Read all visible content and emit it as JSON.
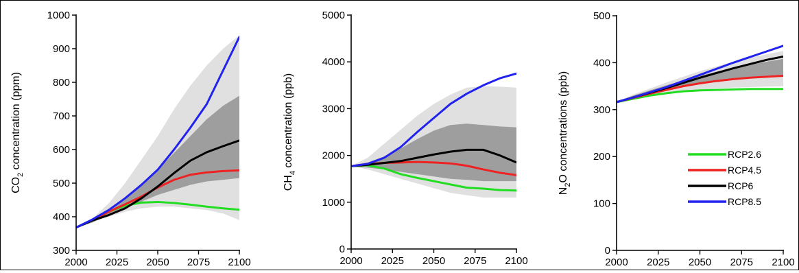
{
  "chart_data": [
    {
      "type": "line",
      "id": "co2",
      "ylabel_main": "CO",
      "ylabel_sub": "2",
      "ylabel_rest": " concentration (ppm)",
      "xlim": [
        2000,
        2100
      ],
      "ylim": [
        300,
        1000
      ],
      "xticks": [
        "2000",
        "2025",
        "2050",
        "2075",
        "2100"
      ],
      "yticks": [
        "300",
        "400",
        "500",
        "600",
        "700",
        "800",
        "900",
        "1000"
      ],
      "x": [
        2000,
        2010,
        2020,
        2030,
        2040,
        2050,
        2060,
        2070,
        2080,
        2090,
        2100
      ],
      "bands": [
        {
          "kind": "light",
          "lower": [
            367,
            385,
            400,
            415,
            425,
            430,
            430,
            425,
            420,
            410,
            390
          ],
          "upper": [
            367,
            395,
            440,
            500,
            570,
            640,
            720,
            790,
            850,
            900,
            940
          ]
        },
        {
          "kind": "dark",
          "lower": [
            367,
            383,
            405,
            425,
            445,
            465,
            480,
            495,
            505,
            510,
            515
          ],
          "upper": [
            367,
            390,
            420,
            455,
            495,
            540,
            590,
            640,
            690,
            730,
            760
          ]
        }
      ],
      "series": [
        {
          "name": "RCP2.6",
          "color": "#22dd22",
          "values": [
            368,
            390,
            415,
            433,
            442,
            444,
            441,
            436,
            430,
            425,
            421
          ]
        },
        {
          "name": "RCP4.5",
          "color": "#ee2222",
          "values": [
            368,
            390,
            415,
            437,
            460,
            487,
            510,
            525,
            532,
            536,
            538
          ]
        },
        {
          "name": "RCP6",
          "color": "#000000",
          "values": [
            368,
            389,
            405,
            425,
            455,
            490,
            530,
            567,
            592,
            610,
            627
          ]
        },
        {
          "name": "RCP8.5",
          "color": "#2222ee",
          "values": [
            368,
            392,
            420,
            455,
            495,
            540,
            600,
            665,
            735,
            835,
            935
          ]
        }
      ]
    },
    {
      "type": "line",
      "id": "ch4",
      "ylabel_main": "CH",
      "ylabel_sub": "4",
      "ylabel_rest": " concentration (ppb)",
      "xlim": [
        2000,
        2100
      ],
      "ylim": [
        0,
        5000
      ],
      "xticks": [
        "2000",
        "2025",
        "2050",
        "2075",
        "2100"
      ],
      "yticks": [
        "0",
        "1000",
        "2000",
        "3000",
        "4000",
        "5000"
      ],
      "x": [
        2000,
        2010,
        2020,
        2030,
        2040,
        2050,
        2060,
        2070,
        2080,
        2090,
        2100
      ],
      "bands": [
        {
          "kind": "light",
          "lower": [
            1770,
            1700,
            1600,
            1500,
            1400,
            1300,
            1200,
            1150,
            1100,
            1100,
            1100
          ],
          "upper": [
            1770,
            1950,
            2250,
            2550,
            2850,
            3100,
            3300,
            3450,
            3480,
            3470,
            3450
          ]
        },
        {
          "kind": "dark",
          "lower": [
            1770,
            1740,
            1700,
            1650,
            1600,
            1550,
            1500,
            1480,
            1450,
            1450,
            1450
          ],
          "upper": [
            1770,
            1850,
            1980,
            2150,
            2350,
            2530,
            2650,
            2680,
            2650,
            2620,
            2600
          ]
        }
      ],
      "series": [
        {
          "name": "RCP2.6",
          "color": "#22dd22",
          "values": [
            1770,
            1790,
            1720,
            1600,
            1520,
            1450,
            1380,
            1310,
            1290,
            1260,
            1250
          ]
        },
        {
          "name": "RCP4.5",
          "color": "#ee2222",
          "values": [
            1770,
            1820,
            1840,
            1850,
            1860,
            1850,
            1830,
            1780,
            1700,
            1630,
            1580
          ]
        },
        {
          "name": "RCP6",
          "color": "#000000",
          "values": [
            1770,
            1800,
            1840,
            1880,
            1950,
            2020,
            2080,
            2120,
            2120,
            2000,
            1850
          ]
        },
        {
          "name": "RCP8.5",
          "color": "#2222ee",
          "values": [
            1770,
            1820,
            1950,
            2180,
            2500,
            2800,
            3100,
            3320,
            3500,
            3650,
            3750
          ]
        }
      ]
    },
    {
      "type": "line",
      "id": "n2o",
      "ylabel_main": "N",
      "ylabel_sub": "2",
      "ylabel_rest": "O concentrations (ppb)",
      "xlim": [
        2000,
        2100
      ],
      "ylim": [
        0,
        500
      ],
      "xticks": [
        "2000",
        "2025",
        "2050",
        "2075",
        "2100"
      ],
      "yticks": [
        "0",
        "100",
        "200",
        "300",
        "400",
        "500"
      ],
      "x": [
        2000,
        2010,
        2020,
        2030,
        2040,
        2050,
        2060,
        2070,
        2080,
        2090,
        2100
      ],
      "bands": [
        {
          "kind": "light",
          "lower": [
            316,
            322,
            328,
            333,
            338,
            342,
            345,
            347,
            348,
            349,
            350
          ],
          "upper": [
            316,
            332,
            345,
            358,
            370,
            382,
            392,
            402,
            410,
            418,
            425
          ]
        },
        {
          "kind": "dark",
          "lower": [
            316,
            324,
            332,
            340,
            348,
            355,
            361,
            366,
            370,
            372,
            374
          ],
          "upper": [
            316,
            330,
            341,
            352,
            362,
            372,
            381,
            389,
            396,
            402,
            408
          ]
        }
      ],
      "series": [
        {
          "name": "RCP2.6",
          "color": "#22dd22",
          "values": [
            316,
            323,
            330,
            335,
            339,
            341,
            342,
            343,
            344,
            344,
            344
          ]
        },
        {
          "name": "RCP4.5",
          "color": "#ee2222",
          "values": [
            316,
            325,
            334,
            342,
            350,
            356,
            361,
            365,
            368,
            370,
            372
          ]
        },
        {
          "name": "RCP6",
          "color": "#000000",
          "values": [
            316,
            326,
            336,
            346,
            357,
            368,
            378,
            388,
            397,
            406,
            413
          ]
        },
        {
          "name": "RCP8.5",
          "color": "#2222ee",
          "values": [
            316,
            326,
            337,
            348,
            361,
            374,
            387,
            400,
            412,
            424,
            436
          ]
        }
      ]
    }
  ],
  "legend": {
    "placement": "bottom-right of third panel",
    "items": [
      {
        "label": "RCP2.6",
        "color": "#22dd22"
      },
      {
        "label": "RCP4.5",
        "color": "#ee2222"
      },
      {
        "label": "RCP6",
        "color": "#000000"
      },
      {
        "label": "RCP8.5",
        "color": "#2222ee"
      }
    ]
  },
  "band_colors": {
    "light": "#e0e0e0",
    "dark": "#9e9e9e"
  }
}
